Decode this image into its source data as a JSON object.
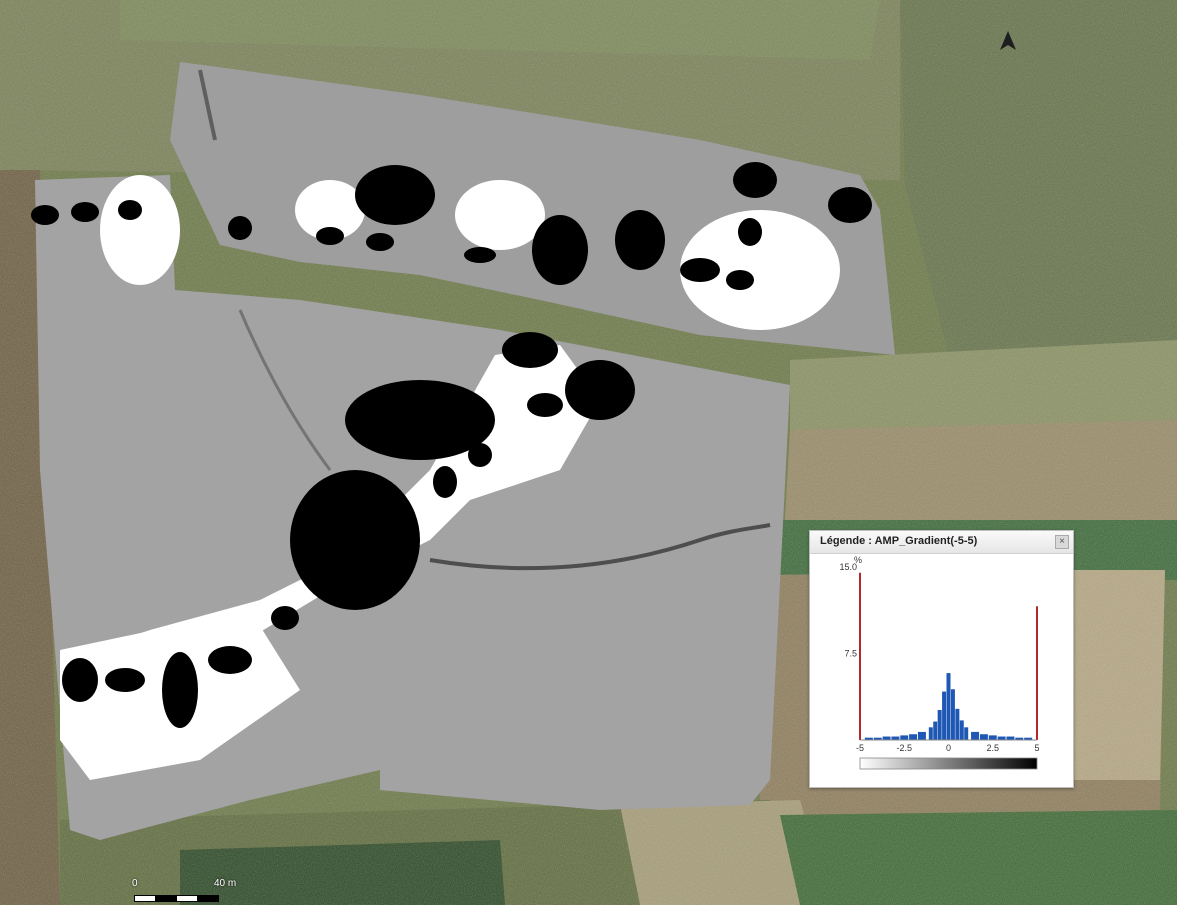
{
  "map": {
    "north_arrow_icon": "north-arrow-icon",
    "scale": {
      "zero_label": "0",
      "end_label": "40 m"
    }
  },
  "legend": {
    "title": "Légende : AMP_Gradient(-5-5)",
    "close_icon": "close-icon",
    "close_label": "×"
  },
  "chart_data": {
    "type": "bar",
    "title": "",
    "y_unit_label": "%",
    "ylim": [
      0,
      15.0
    ],
    "y_ticks": [
      "15.0",
      "7.5"
    ],
    "xlim": [
      -5,
      5
    ],
    "x_ticks": [
      "-5",
      "-2.5",
      "0",
      "2.5",
      "5"
    ],
    "x": [
      -5.0,
      -4.5,
      -4.0,
      -3.5,
      -3.0,
      -2.5,
      -2.0,
      -1.5,
      -1.0,
      -0.75,
      -0.5,
      -0.25,
      0.0,
      0.25,
      0.5,
      0.75,
      1.0,
      1.5,
      2.0,
      2.5,
      3.0,
      3.5,
      4.0,
      4.5,
      5.0
    ],
    "values": [
      14.5,
      0.2,
      0.2,
      0.3,
      0.3,
      0.4,
      0.5,
      0.7,
      1.1,
      1.6,
      2.6,
      4.2,
      5.8,
      4.4,
      2.7,
      1.7,
      1.1,
      0.7,
      0.5,
      0.4,
      0.3,
      0.3,
      0.2,
      0.2,
      11.6
    ],
    "bar_color": "#1f57b5",
    "limit_line_color": "#b02a2a",
    "colorbar": {
      "from": "#ffffff",
      "to": "#000000"
    }
  }
}
